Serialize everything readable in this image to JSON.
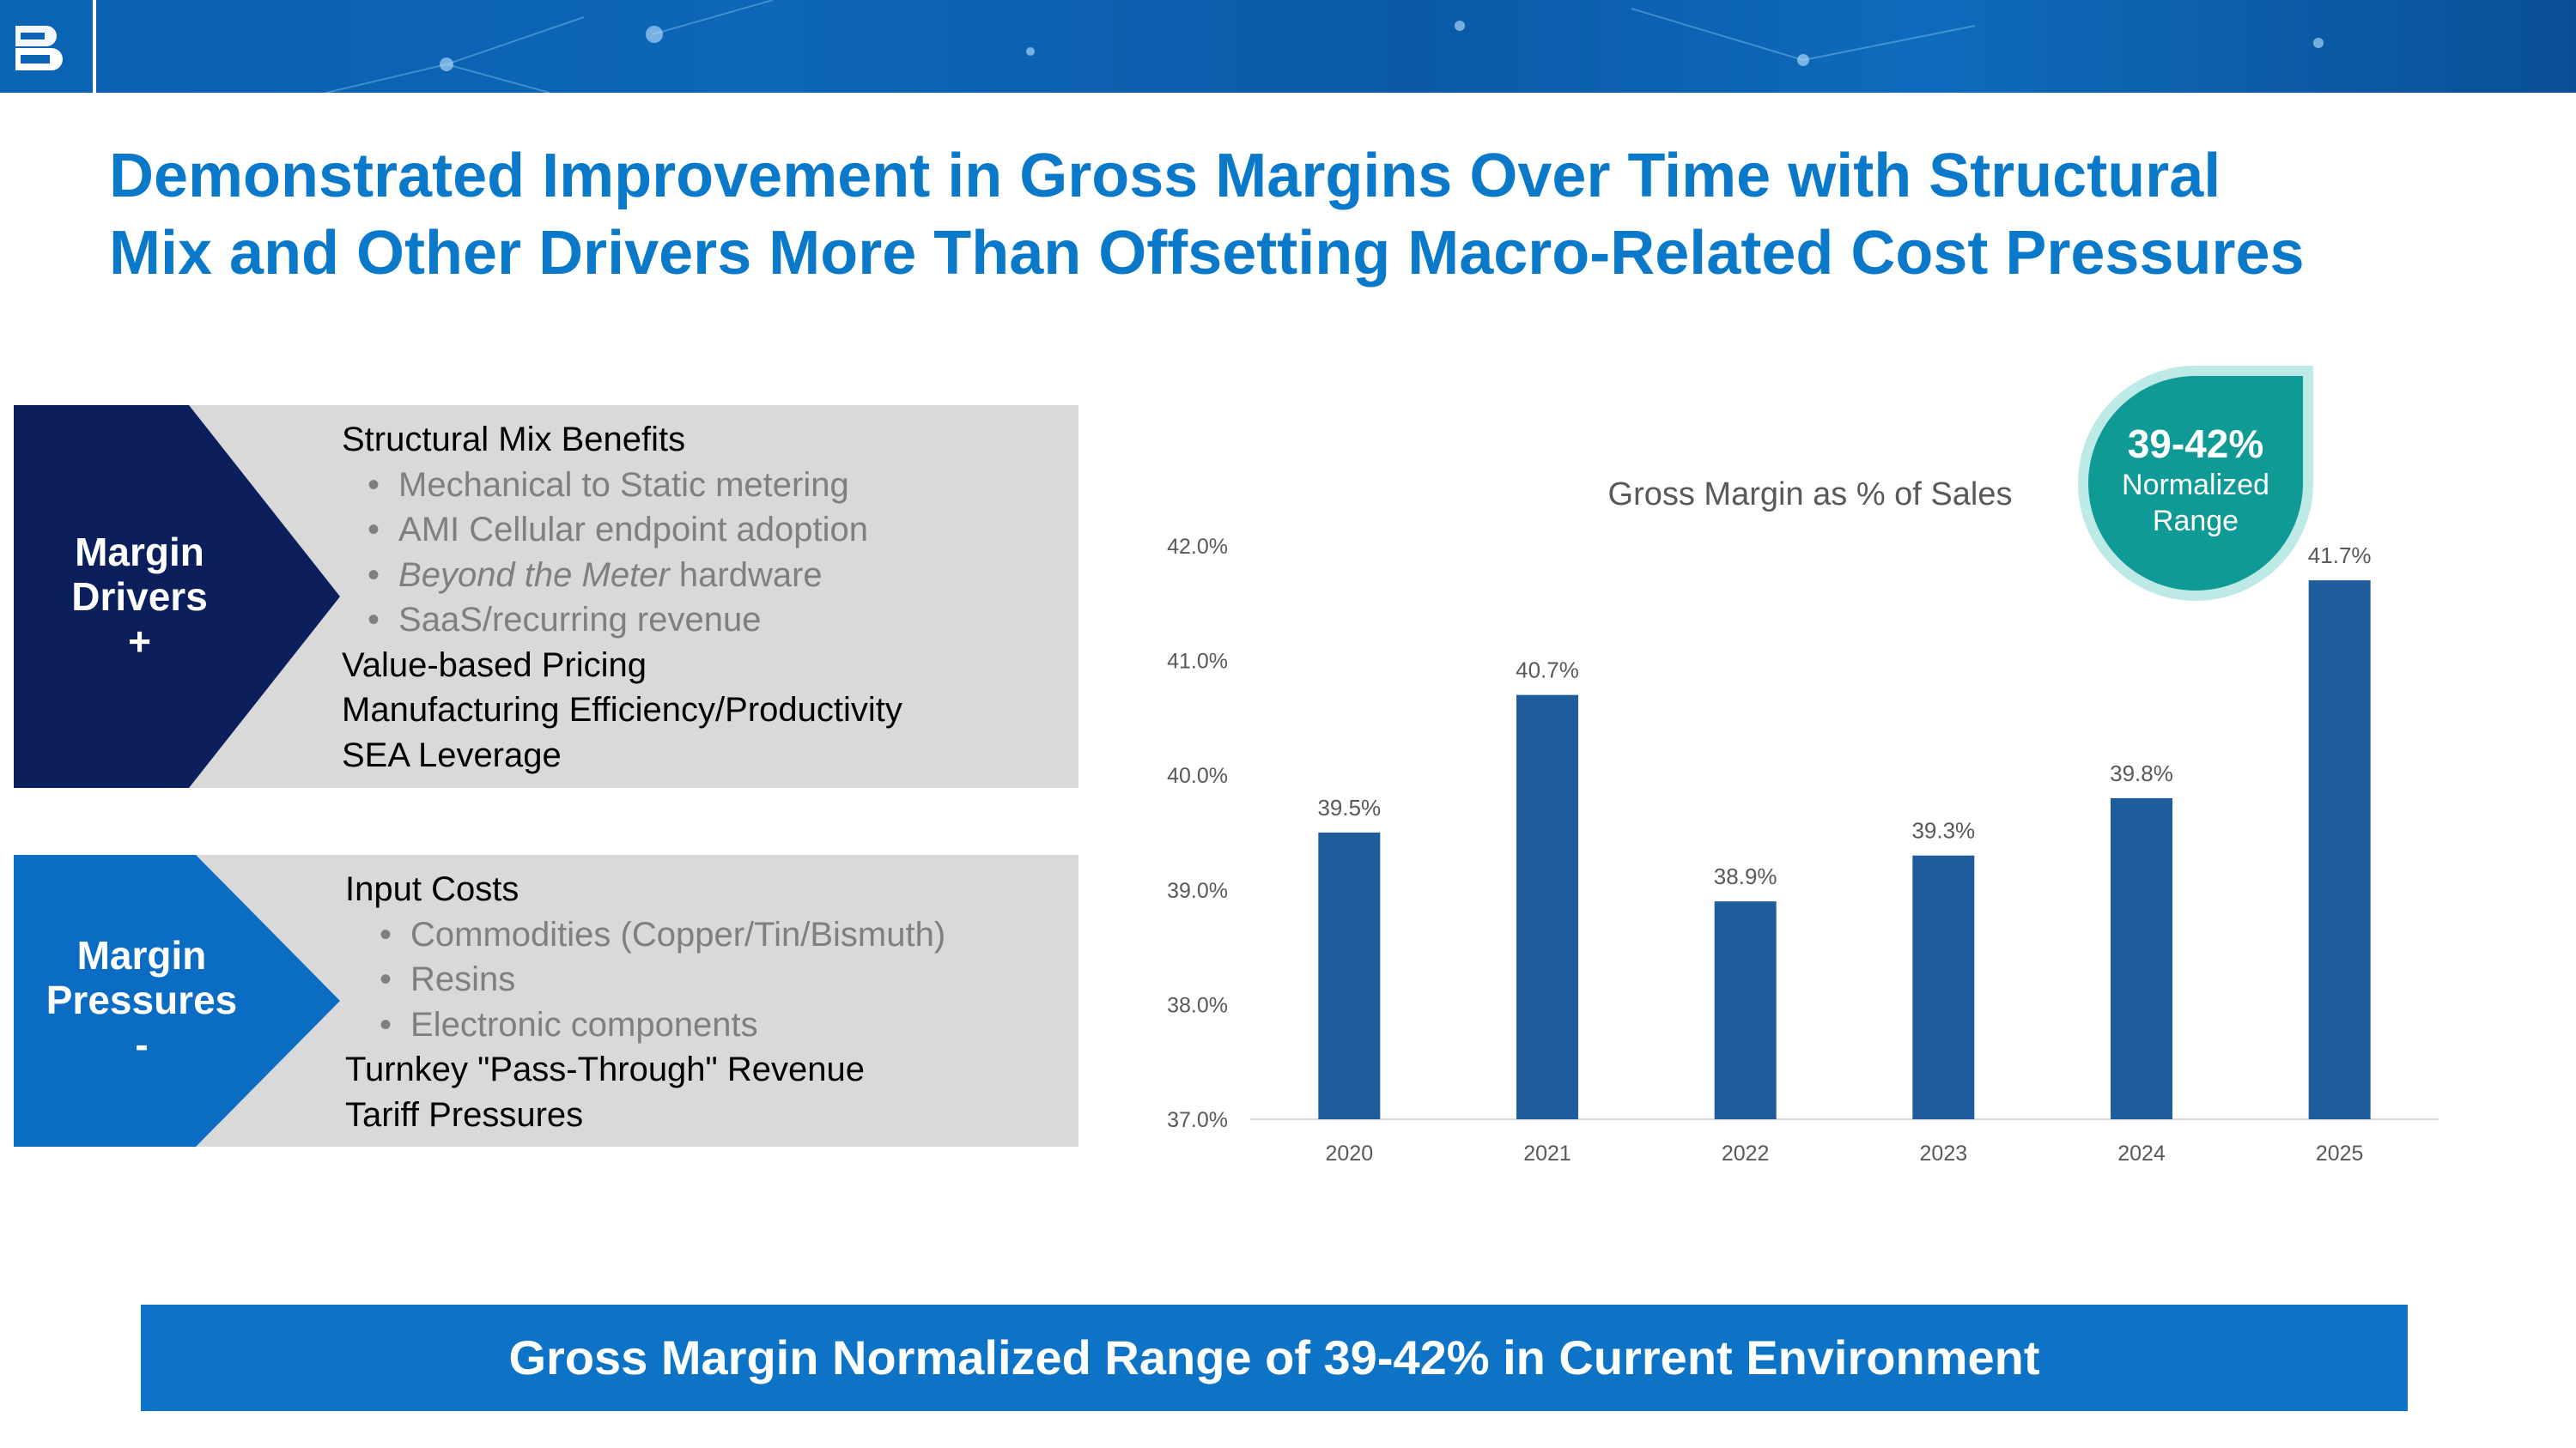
{
  "header": {
    "logo_icon": "badger-meter-logo-icon"
  },
  "title": {
    "line1": "Demonstrated Improvement in Gross Margins Over Time with Structural",
    "line2": "Mix and Other Drivers More Than Offsetting Macro-Related Cost Pressures"
  },
  "drivers": {
    "label_line1": "Margin",
    "label_line2": "Drivers",
    "label_sign": "+",
    "items": [
      {
        "text": "Structural Mix Benefits",
        "level": 0
      },
      {
        "text": "Mechanical to Static metering",
        "level": 1
      },
      {
        "text": "AMI Cellular endpoint adoption",
        "level": 1
      },
      {
        "text_italic": "Beyond the Meter",
        "text": " hardware",
        "level": 1
      },
      {
        "text": "SaaS/recurring revenue",
        "level": 1
      },
      {
        "text": "Value-based Pricing",
        "level": 0
      },
      {
        "text": "Manufacturing Efficiency/Productivity",
        "level": 0
      },
      {
        "text": "SEA Leverage",
        "level": 0
      }
    ]
  },
  "pressures": {
    "label_line1": "Margin",
    "label_line2": "Pressures",
    "label_sign": "-",
    "items": [
      {
        "text": "Input Costs",
        "level": 0
      },
      {
        "text": "Commodities (Copper/Tin/Bismuth)",
        "level": 1
      },
      {
        "text": "Resins",
        "level": 1
      },
      {
        "text": "Electronic components",
        "level": 1
      },
      {
        "text": "Turnkey \"Pass-Through\" Revenue",
        "level": 0
      },
      {
        "text": "Tariff Pressures",
        "level": 0
      }
    ]
  },
  "badge": {
    "value": "39-42%",
    "line2": "Normalized",
    "line3": "Range"
  },
  "chart_data": {
    "type": "bar",
    "title": "Gross Margin as % of Sales",
    "categories": [
      "2020",
      "2021",
      "2022",
      "2023",
      "2024",
      "2025"
    ],
    "values": [
      39.5,
      40.7,
      38.9,
      39.3,
      39.8,
      41.7
    ],
    "data_labels": [
      "39.5%",
      "40.7%",
      "38.9%",
      "39.3%",
      "39.8%",
      "41.7%"
    ],
    "y_ticks": [
      "37.0%",
      "38.0%",
      "39.0%",
      "40.0%",
      "41.0%",
      "42.0%"
    ],
    "ylim": [
      37,
      42
    ],
    "grid": false,
    "bar_color": "#1f5c9b"
  },
  "footer": {
    "text": "Gross Margin Normalized Range of 39-42% in Current Environment"
  },
  "colors": {
    "title": "#0b79c9",
    "drivers_chevron": "#0a1f5c",
    "pressures_chevron": "#0b6cc4",
    "badge": "#0f9a96"
  }
}
